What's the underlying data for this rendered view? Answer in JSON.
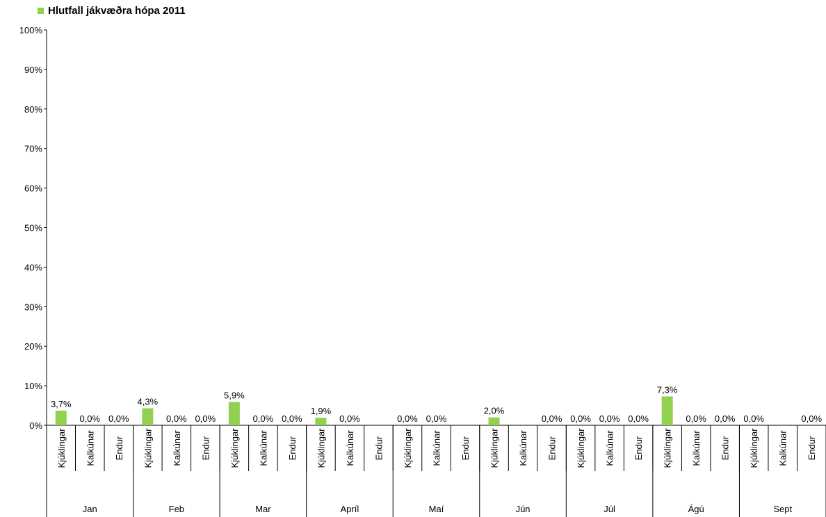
{
  "chart_data": {
    "type": "bar",
    "series": [
      {
        "name": "Hlutfall jákvæðra hópa 2011",
        "color": "#92d050"
      }
    ],
    "ylim": [
      0,
      100
    ],
    "y_ticks": [
      "0%",
      "10%",
      "20%",
      "30%",
      "40%",
      "50%",
      "60%",
      "70%",
      "80%",
      "90%",
      "100%"
    ],
    "grid": false,
    "legend_position": "top-left",
    "months": [
      {
        "label": "Jan",
        "items": [
          {
            "category": "Kjúklingar",
            "value": 3.7,
            "label": "3,7%"
          },
          {
            "category": "Kalkúnar",
            "value": 0.0,
            "label": "0,0%"
          },
          {
            "category": "Endur",
            "value": 0.0,
            "label": "0,0%"
          }
        ]
      },
      {
        "label": "Feb",
        "items": [
          {
            "category": "Kjúklingar",
            "value": 4.3,
            "label": "4,3%"
          },
          {
            "category": "Kalkúnar",
            "value": 0.0,
            "label": "0,0%"
          },
          {
            "category": "Endur",
            "value": 0.0,
            "label": "0,0%"
          }
        ]
      },
      {
        "label": "Mar",
        "items": [
          {
            "category": "Kjúklingar",
            "value": 5.9,
            "label": "5,9%"
          },
          {
            "category": "Kalkúnar",
            "value": 0.0,
            "label": "0,0%"
          },
          {
            "category": "Endur",
            "value": 0.0,
            "label": "0,0%"
          }
        ]
      },
      {
        "label": "Apríl",
        "items": [
          {
            "category": "Kjúklingar",
            "value": 1.9,
            "label": "1,9%"
          },
          {
            "category": "Kalkúnar",
            "value": 0.0,
            "label": "0,0%"
          },
          {
            "category": "Endur",
            "value": null,
            "label": ""
          }
        ]
      },
      {
        "label": "Maí",
        "items": [
          {
            "category": "Kjúklingar",
            "value": 0.0,
            "label": "0,0%"
          },
          {
            "category": "Kalkúnar",
            "value": 0.0,
            "label": "0,0%"
          },
          {
            "category": "Endur",
            "value": null,
            "label": ""
          }
        ]
      },
      {
        "label": "Jún",
        "items": [
          {
            "category": "Kjúklingar",
            "value": 2.0,
            "label": "2,0%"
          },
          {
            "category": "Kalkúnar",
            "value": null,
            "label": ""
          },
          {
            "category": "Endur",
            "value": 0.0,
            "label": "0,0%"
          }
        ]
      },
      {
        "label": "Júl",
        "items": [
          {
            "category": "Kjúklingar",
            "value": 0.0,
            "label": "0,0%"
          },
          {
            "category": "Kalkúnar",
            "value": 0.0,
            "label": "0,0%"
          },
          {
            "category": "Endur",
            "value": 0.0,
            "label": "0,0%"
          }
        ]
      },
      {
        "label": "Ágú",
        "items": [
          {
            "category": "Kjúklingar",
            "value": 7.3,
            "label": "7,3%"
          },
          {
            "category": "Kalkúnar",
            "value": 0.0,
            "label": "0,0%"
          },
          {
            "category": "Endur",
            "value": 0.0,
            "label": "0,0%"
          }
        ]
      },
      {
        "label": "Sept",
        "items": [
          {
            "category": "Kjúklingar",
            "value": 0.0,
            "label": "0,0%"
          },
          {
            "category": "Kalkúnar",
            "value": null,
            "label": ""
          },
          {
            "category": "Endur",
            "value": 0.0,
            "label": "0,0%"
          }
        ]
      }
    ]
  }
}
